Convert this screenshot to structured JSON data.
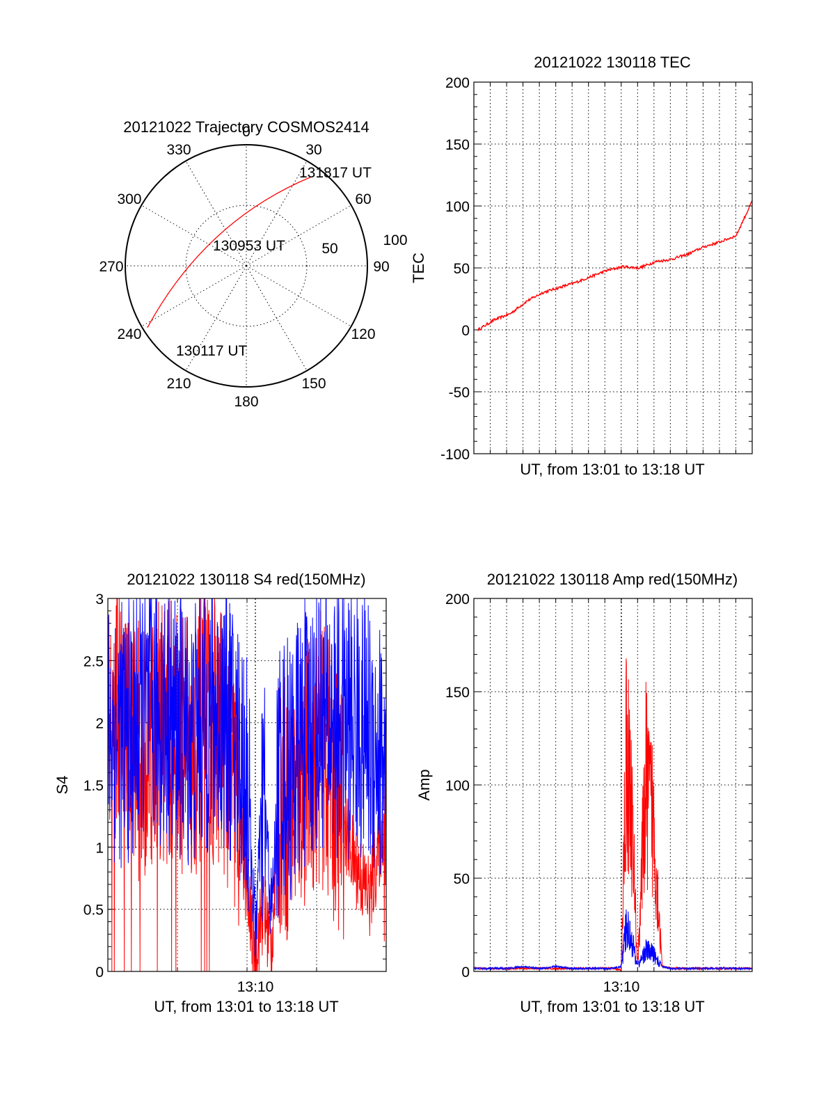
{
  "figure": {
    "background": "#ffffff",
    "panels": [
      {
        "id": "polar",
        "type": "polar-trajectory",
        "title": "20121022 Trajectory COSMOS2414",
        "azimuth_labels": [
          "0",
          "30",
          "60",
          "90",
          "120",
          "150",
          "180",
          "210",
          "240",
          "270",
          "300",
          "330"
        ],
        "ring_labels": [
          "50",
          "100"
        ],
        "annotations": [
          "131817 UT",
          "130953 UT",
          "130117 UT"
        ],
        "color": "#ff0000"
      },
      {
        "id": "tec",
        "type": "line",
        "title": "20121022 130118 TEC",
        "ylabel": "TEC",
        "xlabel": "UT, from 13:01 to 13:18 UT",
        "yticks": [
          "200",
          "150",
          "100",
          "50",
          "0",
          "-50",
          "-100"
        ],
        "color": "#ff0000"
      },
      {
        "id": "s4",
        "type": "line",
        "title": "20121022 130118 S4 red(150MHz)",
        "ylabel": "S4",
        "xlabel": "UT, from 13:01 to 13:18 UT",
        "xtick": "13:10",
        "yticks": [
          "3",
          "2.5",
          "2",
          "1.5",
          "1",
          "0.5",
          "0"
        ],
        "colors": [
          "#ff0000",
          "#0000ff"
        ]
      },
      {
        "id": "amp",
        "type": "line",
        "title": "20121022 130118 Amp red(150MHz)",
        "ylabel": "Amp",
        "xlabel": "UT, from 13:01 to 13:18 UT",
        "xtick": "13:10",
        "yticks": [
          "200",
          "150",
          "100",
          "50",
          "0"
        ],
        "colors": [
          "#ff0000",
          "#0000ff"
        ]
      }
    ]
  },
  "chart_data": [
    {
      "type": "line",
      "title": "20121022 Trajectory COSMOS2414",
      "polar": true,
      "points": [
        {
          "label": "130117 UT",
          "azimuth_deg": 238,
          "elevation_deg": 5
        },
        {
          "label": "130953 UT",
          "azimuth_deg": 315,
          "elevation_deg": 60
        },
        {
          "label": "131817 UT",
          "azimuth_deg": 36,
          "elevation_deg": 10
        }
      ],
      "azimuth_ticks": [
        0,
        30,
        60,
        90,
        120,
        150,
        180,
        210,
        240,
        270,
        300,
        330
      ],
      "radial_ticks": [
        50,
        100
      ]
    },
    {
      "type": "line",
      "title": "20121022 130118 TEC",
      "xlabel": "UT, from 13:01 to 13:18 UT",
      "ylabel": "TEC",
      "ylim": [
        -100,
        200
      ],
      "x_minutes": [
        0,
        1,
        2,
        3,
        4,
        5,
        6,
        7,
        8,
        9,
        10,
        11,
        12,
        13,
        14,
        15,
        16,
        17
      ],
      "series": [
        {
          "values": [
            0,
            8,
            13,
            23,
            30,
            34,
            38,
            43,
            48,
            51,
            50,
            55,
            57,
            61,
            67,
            71,
            76,
            104
          ]
        }
      ],
      "grid": true
    },
    {
      "type": "line",
      "title": "20121022 130118 S4 red(150MHz)",
      "xlabel": "UT, from 13:01 to 13:18 UT",
      "ylabel": "S4",
      "ylim": [
        0,
        3
      ],
      "xticks": [
        "13:10"
      ],
      "x_minutes": [
        0,
        1,
        2,
        3,
        4,
        5,
        6,
        7,
        8,
        8.5,
        9,
        9.5,
        10,
        10.5,
        11,
        12,
        13,
        14,
        15,
        16,
        17
      ],
      "series": [
        {
          "color": "#ff0000",
          "values": [
            2.2,
            1.9,
            1.8,
            2.0,
            1.9,
            1.8,
            2.0,
            1.9,
            1.3,
            0.6,
            0.15,
            0.5,
            0.2,
            1.4,
            1.3,
            1.6,
            1.8,
            1.4,
            0.9,
            0.6,
            1.3
          ]
        },
        {
          "color": "#0000ff",
          "values": [
            2.0,
            1.9,
            2.0,
            2.1,
            2.0,
            1.9,
            2.0,
            2.1,
            1.8,
            1.6,
            0.3,
            1.5,
            0.45,
            1.7,
            1.6,
            1.9,
            2.1,
            2.0,
            2.0,
            1.9,
            1.7
          ]
        }
      ],
      "grid": true
    },
    {
      "type": "line",
      "title": "20121022 130118 Amp red(150MHz)",
      "xlabel": "UT, from 13:01 to 13:18 UT",
      "ylabel": "Amp",
      "ylim": [
        0,
        200
      ],
      "xticks": [
        "13:10"
      ],
      "x_minutes": [
        0,
        1,
        2,
        3,
        4,
        5,
        6,
        7,
        8,
        8.5,
        9,
        9.3,
        9.6,
        10,
        10.5,
        11,
        11.5,
        12,
        13,
        14,
        15,
        16,
        17
      ],
      "series": [
        {
          "color": "#ff0000",
          "values": [
            1,
            1,
            1,
            1,
            1,
            1,
            1,
            1,
            1,
            1,
            0,
            150,
            120,
            4,
            130,
            100,
            2,
            1,
            1,
            1,
            1,
            1,
            1
          ]
        },
        {
          "color": "#0000ff",
          "values": [
            1,
            1,
            1,
            2,
            1,
            2,
            1,
            1,
            1,
            1,
            2,
            30,
            25,
            3,
            15,
            12,
            2,
            1,
            1,
            1,
            1,
            1,
            1
          ]
        }
      ],
      "grid": true
    }
  ]
}
